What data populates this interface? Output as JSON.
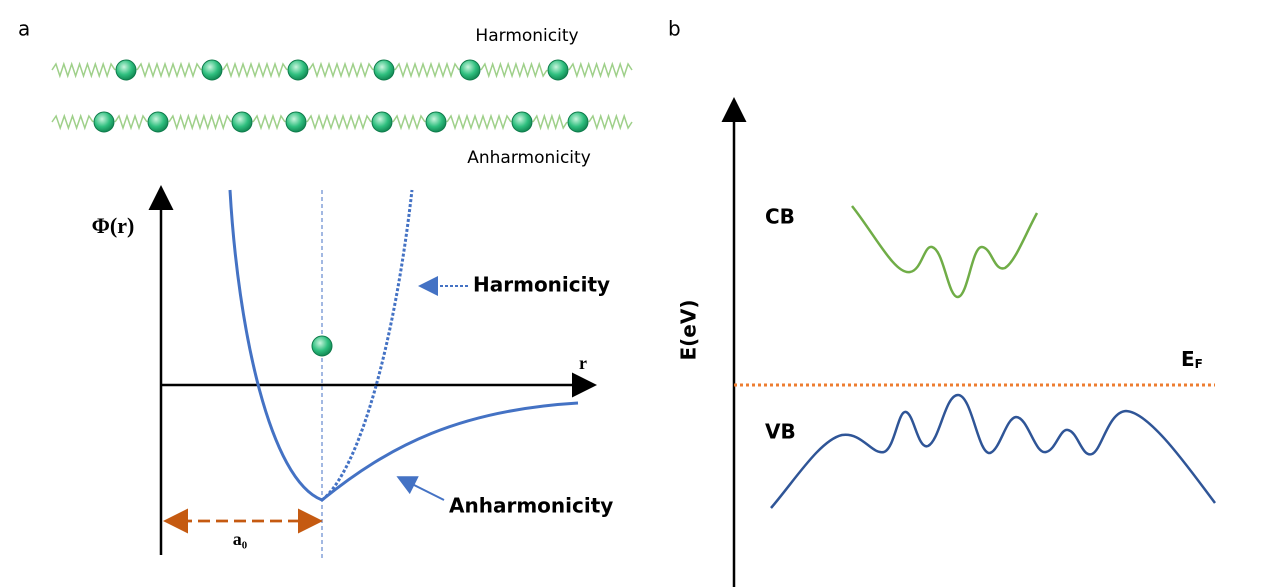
{
  "panel_a": {
    "label": "a",
    "chain_top_label": "Harmonicity",
    "chain_bottom_label": "Anharmonicity",
    "y_axis_label": "Φ(r)",
    "x_axis_label": "r",
    "harmonic_label": "Harmonicity",
    "anharmonic_label": "Anharmonicity",
    "equilibrium_label": "a₀"
  },
  "panel_b": {
    "label": "b",
    "y_axis_label": "E(eV)",
    "conduction_band_label": "CB",
    "valence_band_label": "VB",
    "fermi_level_label": {
      "main": "E",
      "sub": "F"
    }
  }
}
